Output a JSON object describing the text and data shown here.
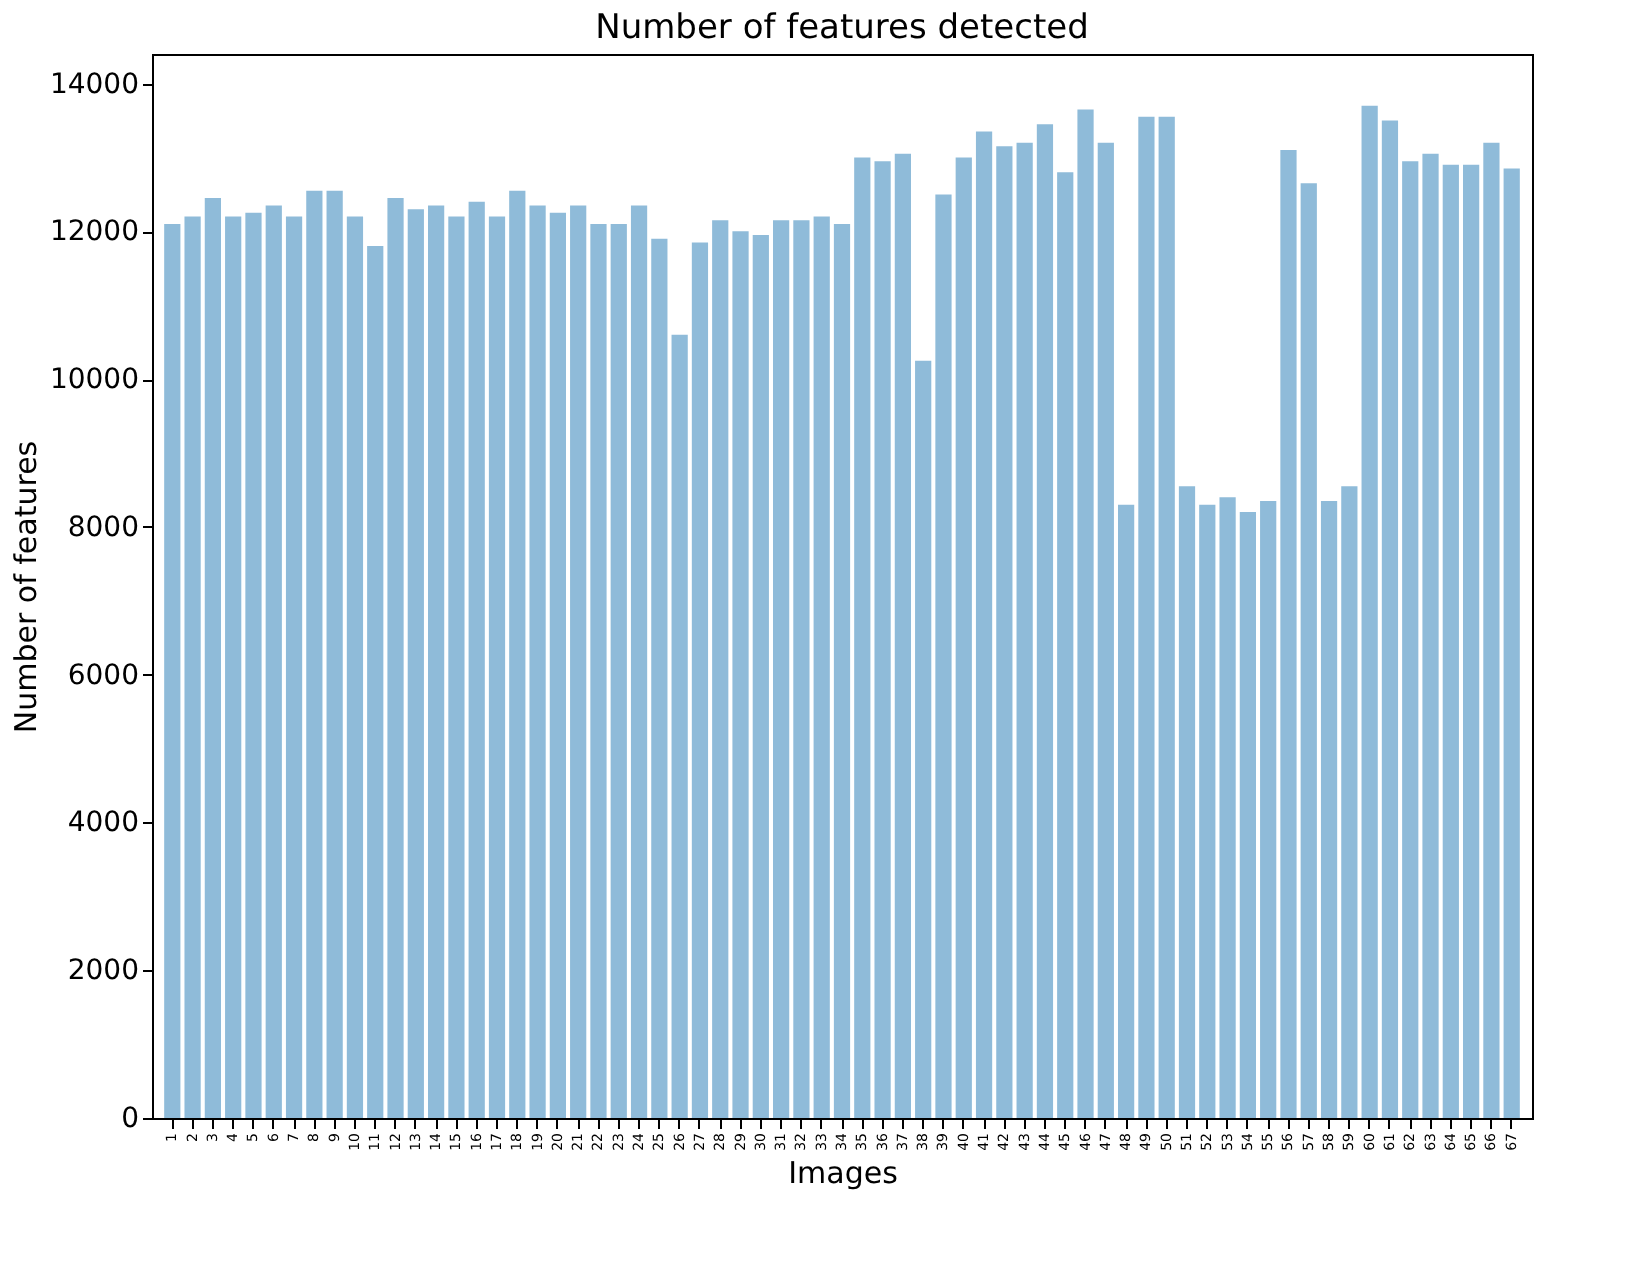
{
  "chart_data": {
    "type": "bar",
    "title": "Number of features detected",
    "xlabel": "Images",
    "ylabel": "Number of features",
    "categories": [
      "1",
      "2",
      "3",
      "4",
      "5",
      "6",
      "7",
      "8",
      "9",
      "10",
      "11",
      "12",
      "13",
      "14",
      "15",
      "16",
      "17",
      "18",
      "19",
      "20",
      "21",
      "22",
      "23",
      "24",
      "25",
      "26",
      "27",
      "28",
      "29",
      "30",
      "31",
      "32",
      "33",
      "34",
      "35",
      "36",
      "37",
      "38",
      "39",
      "40",
      "41",
      "42",
      "43",
      "44",
      "45",
      "46",
      "47",
      "48",
      "49",
      "50",
      "51",
      "52",
      "53",
      "54",
      "55",
      "56",
      "57",
      "58",
      "59",
      "60",
      "61",
      "62",
      "63",
      "64",
      "65",
      "66",
      "67"
    ],
    "values": [
      12100,
      12200,
      12450,
      12200,
      12250,
      12350,
      12200,
      12550,
      12550,
      12200,
      11800,
      12450,
      12300,
      12350,
      12200,
      12400,
      12200,
      12550,
      12350,
      12250,
      12350,
      12100,
      12100,
      12350,
      11900,
      10600,
      11850,
      12150,
      12000,
      11950,
      12150,
      12150,
      12200,
      12100,
      13000,
      12950,
      13050,
      10250,
      12500,
      13000,
      13350,
      13150,
      13200,
      13450,
      12800,
      13650,
      13200,
      8300,
      13550,
      13550,
      8550,
      8300,
      8400,
      8200,
      8350,
      13100,
      12650,
      8350,
      8550,
      13700,
      13500,
      12950,
      13050,
      12900,
      12900,
      13200,
      12850
    ],
    "color": "#8fbbd9",
    "ylim": [
      0,
      14400
    ],
    "yticks": [
      0,
      2000,
      4000,
      6000,
      8000,
      10000,
      12000,
      14000
    ],
    "grid": false
  }
}
